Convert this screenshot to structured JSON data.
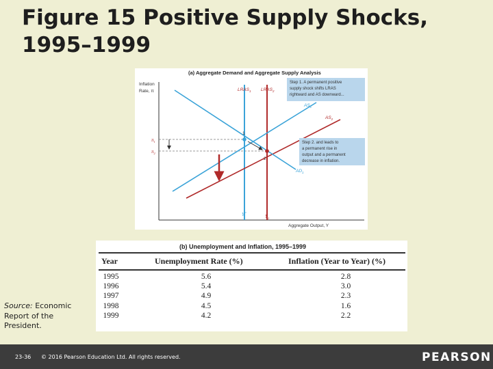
{
  "slide": {
    "title": "Figure 15 Positive Supply Shocks, 1995–1999",
    "source_label": "Source:",
    "source_text": "Economic Report of the President.",
    "slide_number": "23-36",
    "copyright": "© 2016 Pearson Education Ltd. All rights reserved.",
    "logo": "PEARSON"
  },
  "colors": {
    "blue_curves": "#3aa3d8",
    "red_curves": "#b02a2a",
    "callout_bg": "#b9d6ec"
  },
  "panel_a": {
    "title": "(a) Aggregate Demand and Aggregate Supply Analysis",
    "y_axis_label_line1": "Inflation",
    "y_axis_label_line2": "Rate, π",
    "x_axis_label": "Aggregate Output, Y",
    "curve_labels": {
      "lras1": "LRAS",
      "lras1_sub": "1",
      "lras2": "LRAS",
      "lras2_sub": "2",
      "as1": "AS",
      "as1_sub": "1",
      "as2": "AS",
      "as2_sub": "2",
      "ad1": "AD",
      "ad1_sub": "1"
    },
    "point_labels": {
      "p1": "1",
      "p2": "2"
    },
    "tick_labels": {
      "pi1": "π",
      "pi1_sub": "1",
      "pi2": "π",
      "pi2_sub": "2",
      "y1": "Y",
      "y1_sub": "P",
      "y2": "Y",
      "y2_sub": "2"
    },
    "callout1": [
      "Step 1. A permanent positive",
      "supply shock shifts LRAS",
      "rightward and AS downward..."
    ],
    "callout2": [
      "Step 2. and leads to",
      "a permanent rise in",
      "output and a permanent",
      "decrease in inflation."
    ]
  },
  "chart_data": [
    {
      "type": "diagram",
      "title": "(a) Aggregate Demand and Aggregate Supply Analysis",
      "xlabel": "Aggregate Output, Y",
      "ylabel": "Inflation Rate, π",
      "curves": [
        "LRAS1",
        "LRAS2",
        "AS1",
        "AS2",
        "AD1"
      ],
      "points": [
        "1",
        "2"
      ],
      "y_ticks": [
        "π1",
        "π2"
      ],
      "x_ticks": [
        "YP",
        "Y2"
      ]
    },
    {
      "type": "table",
      "title": "(b) Unemployment and Inflation, 1995–1999",
      "columns": [
        "Year",
        "Unemployment Rate (%)",
        "Inflation (Year to Year) (%)"
      ],
      "rows": [
        [
          "1995",
          "5.6",
          "2.8"
        ],
        [
          "1996",
          "5.4",
          "3.0"
        ],
        [
          "1997",
          "4.9",
          "2.3"
        ],
        [
          "1998",
          "4.5",
          "1.6"
        ],
        [
          "1999",
          "4.2",
          "2.2"
        ]
      ]
    }
  ]
}
